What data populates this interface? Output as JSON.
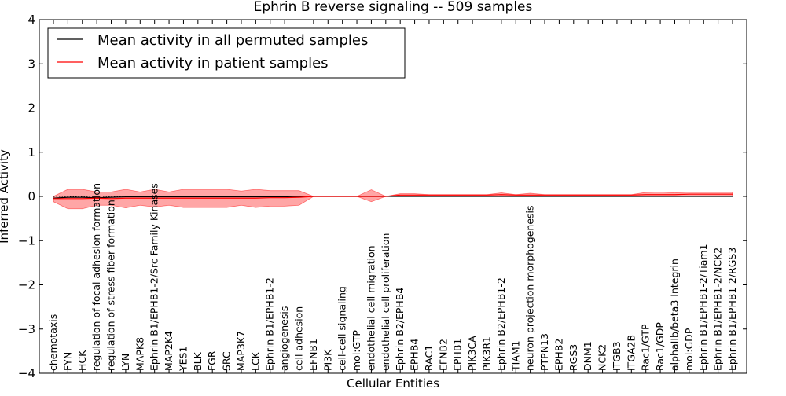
{
  "chart_data": {
    "type": "line",
    "title": "Ephrin B reverse signaling -- 509 samples",
    "xlabel": "Cellular Entities",
    "ylabel": "Inferred Activity",
    "ylim": [
      -4,
      4
    ],
    "yticks": [
      -4,
      -3,
      -2,
      -1,
      0,
      1,
      2,
      3,
      4
    ],
    "ytick_labels": [
      "−4",
      "−3",
      "−2",
      "−1",
      "0",
      "1",
      "2",
      "3",
      "4"
    ],
    "grid": false,
    "legend_position": "top-left",
    "reference_line": 0,
    "categories": [
      "chemotaxis",
      "FYN",
      "HCK",
      "regulation of focal adhesion formation",
      "regulation of stress fiber formation",
      "LYN",
      "MAPK8",
      "Ephrin B1/EPHB1-2/Src Family Kinases",
      "MAP2K4",
      "YES1",
      "BLK",
      "FGR",
      "SRC",
      "MAP3K7",
      "LCK",
      "Ephrin B1/EPHB1-2",
      "angiogenesis",
      "cell adhesion",
      "EFNB1",
      "PI3K",
      "cell-cell signaling",
      "mol:GTP",
      "endothelial cell migration",
      "endothelial cell proliferation",
      "Ephrin B2/EPHB4",
      "EPHB4",
      "RAC1",
      "EFNB2",
      "EPHB1",
      "PIK3CA",
      "PIK3R1",
      "Ephrin B2/EPHB1-2",
      "TIAM1",
      "neuron projection morphogenesis",
      "PTPN13",
      "EPHB2",
      "RGS3",
      "DNM1",
      "NCK2",
      "ITGB3",
      "ITGA2B",
      "Rac1/GTP",
      "Rac1/GDP",
      "alphaIIb/beta3 Integrin",
      "mol:GDP",
      "Ephrin B1/EPHB1-2/Tiam1",
      "Ephrin B1/EPHB1-2/NCK2",
      "Ephrin B1/EPHB1-2/RGS3"
    ],
    "series": [
      {
        "name": "Mean activity in all permuted samples",
        "color": "#000000",
        "values": [
          -0.04,
          -0.02,
          -0.02,
          -0.03,
          -0.02,
          -0.01,
          -0.01,
          -0.01,
          -0.01,
          -0.01,
          -0.01,
          -0.01,
          -0.01,
          -0.01,
          -0.01,
          -0.01,
          -0.01,
          0.0,
          0.0,
          0.0,
          0.0,
          0.0,
          0.0,
          0.0,
          0.0,
          0.0,
          0.0,
          0.0,
          0.0,
          0.0,
          0.0,
          0.0,
          0.0,
          0.0,
          0.0,
          0.0,
          0.0,
          0.0,
          0.0,
          0.0,
          0.0,
          0.0,
          0.0,
          0.0,
          0.0,
          0.0,
          0.0,
          0.0
        ]
      },
      {
        "name": "Mean activity in patient samples",
        "color": "#ff0000",
        "values": [
          -0.05,
          -0.05,
          -0.05,
          -0.04,
          -0.05,
          -0.04,
          -0.04,
          -0.04,
          -0.04,
          -0.04,
          -0.04,
          -0.04,
          -0.04,
          -0.04,
          -0.04,
          -0.03,
          -0.03,
          -0.02,
          0.0,
          0.0,
          0.0,
          0.0,
          0.0,
          0.0,
          0.03,
          0.03,
          0.03,
          0.03,
          0.03,
          0.03,
          0.03,
          0.04,
          0.03,
          0.03,
          0.03,
          0.03,
          0.03,
          0.03,
          0.03,
          0.03,
          0.03,
          0.04,
          0.04,
          0.04,
          0.05,
          0.05,
          0.05,
          0.05
        ],
        "band_upper": [
          0.0,
          0.16,
          0.16,
          0.1,
          0.1,
          0.16,
          0.1,
          0.16,
          0.1,
          0.16,
          0.16,
          0.16,
          0.16,
          0.12,
          0.16,
          0.13,
          0.13,
          0.13,
          0.0,
          0.0,
          0.0,
          0.0,
          0.15,
          0.0,
          0.06,
          0.06,
          0.04,
          0.04,
          0.04,
          0.04,
          0.04,
          0.08,
          0.04,
          0.07,
          0.04,
          0.04,
          0.04,
          0.04,
          0.04,
          0.04,
          0.04,
          0.09,
          0.1,
          0.08,
          0.1,
          0.1,
          0.1,
          0.1
        ],
        "band_lower": [
          -0.12,
          -0.28,
          -0.28,
          -0.2,
          -0.2,
          -0.26,
          -0.2,
          -0.24,
          -0.2,
          -0.25,
          -0.25,
          -0.25,
          -0.25,
          -0.2,
          -0.25,
          -0.22,
          -0.22,
          -0.2,
          0.0,
          0.0,
          0.0,
          0.0,
          -0.12,
          0.0,
          0.0,
          0.0,
          0.0,
          0.0,
          0.0,
          0.0,
          0.0,
          0.0,
          0.0,
          0.0,
          0.0,
          0.0,
          0.0,
          0.0,
          0.0,
          0.0,
          0.0,
          0.0,
          0.0,
          0.0,
          0.0,
          0.0,
          0.0,
          0.0
        ]
      }
    ]
  }
}
